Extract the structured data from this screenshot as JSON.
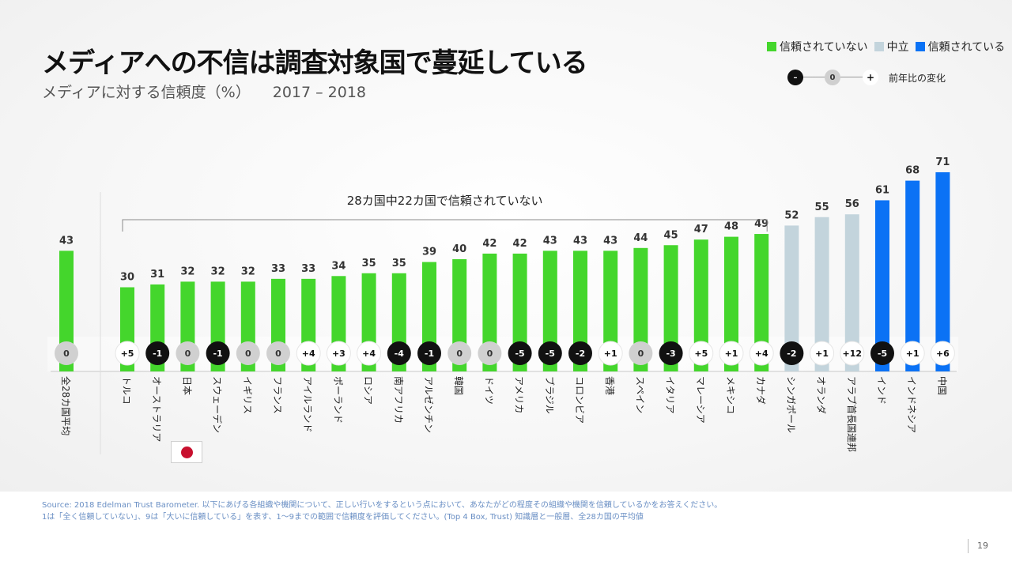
{
  "title": "メディアへの不信は調査対象国で蔓延している",
  "subtitle": "メディアに対する信頼度（%）",
  "subtitle_years": "2017 – 2018",
  "legend": {
    "distrust": "信頼されていない",
    "neutral": "中立",
    "trust": "信頼されている"
  },
  "change_key": {
    "negative": "–",
    "zero": "0",
    "positive": "+",
    "label": "前年比の変化"
  },
  "colors": {
    "distrust": "#44d62c",
    "neutral": "#c3d4dc",
    "trust": "#0b72f5",
    "change_neg": "#111111",
    "change_zero": "#d0d0d0",
    "change_pos": "#ffffff"
  },
  "chart_data": {
    "type": "bar",
    "title": "メディアに対する信頼度（%）",
    "ylim": [
      0,
      100
    ],
    "bracket_label": "28カ国中22カ国で信頼されていない",
    "average": {
      "label": "全28カ国平均",
      "value": 43,
      "change": "0",
      "category": "distrust"
    },
    "countries": [
      {
        "label": "トルコ",
        "value": 30,
        "change": "+5",
        "category": "distrust"
      },
      {
        "label": "オーストラリア",
        "value": 31,
        "change": "-1",
        "category": "distrust"
      },
      {
        "label": "日本",
        "value": 32,
        "change": "0",
        "category": "distrust"
      },
      {
        "label": "スウェーデン",
        "value": 32,
        "change": "-1",
        "category": "distrust"
      },
      {
        "label": "イギリス",
        "value": 32,
        "change": "0",
        "category": "distrust"
      },
      {
        "label": "フランス",
        "value": 33,
        "change": "0",
        "category": "distrust"
      },
      {
        "label": "アイルランド",
        "value": 33,
        "change": "+4",
        "category": "distrust"
      },
      {
        "label": "ポーランド",
        "value": 34,
        "change": "+3",
        "category": "distrust"
      },
      {
        "label": "ロシア",
        "value": 35,
        "change": "+4",
        "category": "distrust"
      },
      {
        "label": "南アフリカ",
        "value": 35,
        "change": "-4",
        "category": "distrust"
      },
      {
        "label": "アルゼンチン",
        "value": 39,
        "change": "-1",
        "category": "distrust"
      },
      {
        "label": "韓国",
        "value": 40,
        "change": "0",
        "category": "distrust"
      },
      {
        "label": "ドイツ",
        "value": 42,
        "change": "0",
        "category": "distrust"
      },
      {
        "label": "アメリカ",
        "value": 42,
        "change": "-5",
        "category": "distrust"
      },
      {
        "label": "ブラジル",
        "value": 43,
        "change": "-5",
        "category": "distrust"
      },
      {
        "label": "コロンビア",
        "value": 43,
        "change": "-2",
        "category": "distrust"
      },
      {
        "label": "香港",
        "value": 43,
        "change": "+1",
        "category": "distrust"
      },
      {
        "label": "スペイン",
        "value": 44,
        "change": "0",
        "category": "distrust"
      },
      {
        "label": "イタリア",
        "value": 45,
        "change": "-3",
        "category": "distrust"
      },
      {
        "label": "マレーシア",
        "value": 47,
        "change": "+5",
        "category": "distrust"
      },
      {
        "label": "メキシコ",
        "value": 48,
        "change": "+1",
        "category": "distrust"
      },
      {
        "label": "カナダ",
        "value": 49,
        "change": "+4",
        "category": "distrust"
      },
      {
        "label": "シンガポール",
        "value": 52,
        "change": "-2",
        "category": "neutral"
      },
      {
        "label": "オランダ",
        "value": 55,
        "change": "+1",
        "category": "neutral"
      },
      {
        "label": "アラブ首長国連邦",
        "value": 56,
        "change": "+12",
        "category": "neutral"
      },
      {
        "label": "インド",
        "value": 61,
        "change": "-5",
        "category": "trust"
      },
      {
        "label": "インドネシア",
        "value": 68,
        "change": "+1",
        "category": "trust"
      },
      {
        "label": "中国",
        "value": 71,
        "change": "+6",
        "category": "trust"
      }
    ]
  },
  "footer": {
    "source_line1": "Source: 2018 Edelman Trust Barometer. 以下にあげる各組織や機関について、正しい行いをするという点において、あなたがどの程度その組織や機関を信頼しているかをお答えください。",
    "source_line2": "1は「全く信頼していない」、9は「大いに信頼している」を表す、1〜9までの範囲で信頼度を評価してください。(Top 4 Box, Trust) 知識層と一般層、全28カ国の平均値"
  },
  "page_number": "19"
}
